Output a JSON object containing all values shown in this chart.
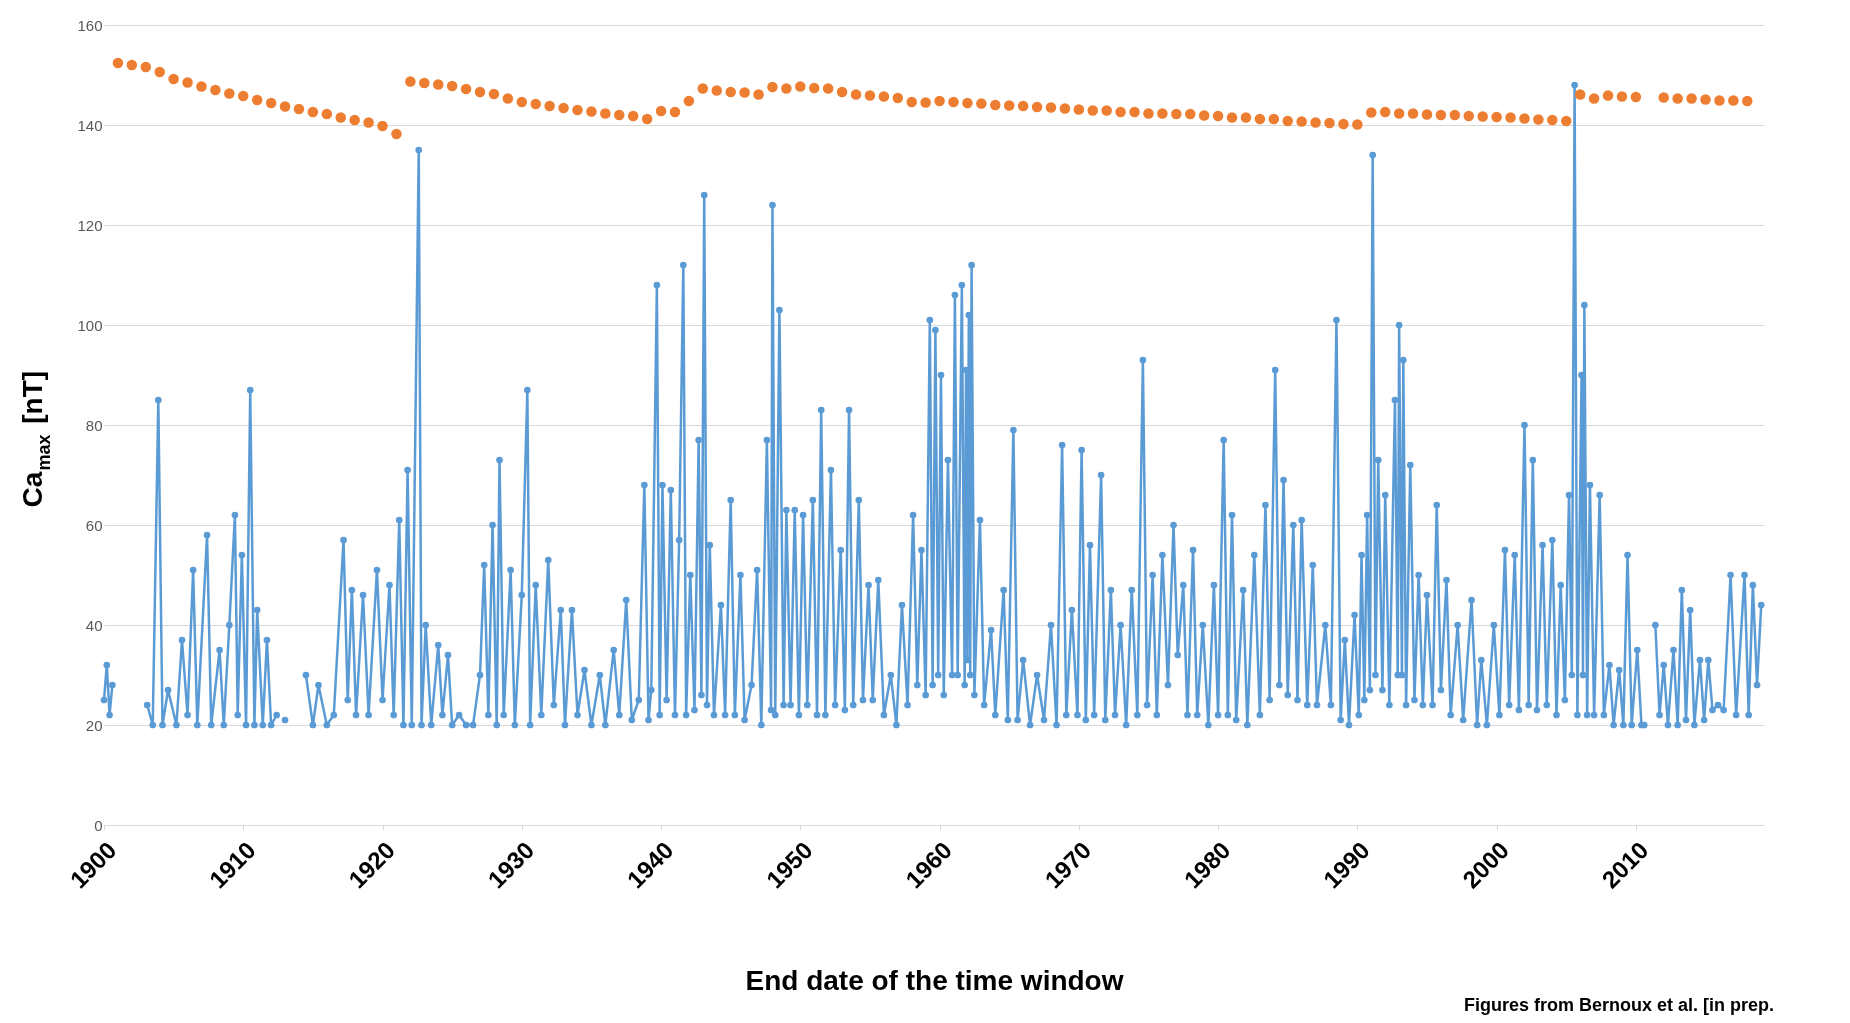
{
  "chart_data": {
    "type": "line",
    "xlabel": "End date of the time window",
    "ylabel": "Ca$_{max}$ [nT]",
    "xlim": [
      1900,
      2019.2
    ],
    "xticks": [
      1900,
      1910,
      1920,
      1930,
      1940,
      1950,
      1960,
      1970,
      1980,
      1990,
      2000,
      2010
    ],
    "ylim": [
      0,
      160
    ],
    "yticks": [
      0,
      20,
      40,
      60,
      80,
      100,
      120,
      140,
      160
    ],
    "grid": "y",
    "marker": "circle",
    "line_style": "solid",
    "annotations": [
      "Figures from Bernoux et al. [in prep."
    ],
    "series": [
      {
        "color": "#5b9bd5",
        "x": [
          1900.0,
          1900.2,
          1900.4,
          1900.6,
          1901.5,
          1903.1,
          1903.5,
          1903.9,
          1904.2,
          1904.6,
          1905.2,
          1905.6,
          1906.0,
          1906.4,
          1906.7,
          1907.4,
          1907.7,
          1908.3,
          1908.6,
          1909.0,
          1909.4,
          1909.6,
          1909.9,
          1910.2,
          1910.5,
          1910.8,
          1911.0,
          1911.4,
          1911.7,
          1912.0,
          1912.4,
          1912.8,
          1913.0,
          1913.5,
          1914.5,
          1915.0,
          1915.4,
          1916.0,
          1916.5,
          1917.2,
          1917.5,
          1917.8,
          1918.1,
          1918.6,
          1919.0,
          1919.6,
          1920.0,
          1920.5,
          1920.8,
          1921.2,
          1921.5,
          1921.8,
          1922.1,
          1922.6,
          1922.8,
          1923.1,
          1923.5,
          1924.0,
          1924.3,
          1924.7,
          1925.0,
          1925.5,
          1926.0,
          1926.5,
          1927.0,
          1927.3,
          1927.6,
          1927.9,
          1928.2,
          1928.4,
          1928.7,
          1929.2,
          1929.5,
          1930.0,
          1930.4,
          1930.6,
          1931.0,
          1931.4,
          1931.9,
          1932.3,
          1932.8,
          1933.1,
          1933.6,
          1934.0,
          1934.5,
          1935.0,
          1935.6,
          1936.0,
          1936.6,
          1937.0,
          1937.5,
          1937.9,
          1938.4,
          1938.8,
          1939.1,
          1939.3,
          1939.7,
          1939.9,
          1940.1,
          1940.4,
          1940.7,
          1941.0,
          1941.3,
          1941.6,
          1941.8,
          1942.1,
          1942.4,
          1942.7,
          1942.9,
          1943.1,
          1943.3,
          1943.5,
          1943.8,
          1944.3,
          1944.6,
          1945.0,
          1945.3,
          1945.7,
          1946.0,
          1946.5,
          1946.9,
          1947.2,
          1947.6,
          1947.9,
          1948.0,
          1948.2,
          1948.5,
          1948.8,
          1949.0,
          1949.3,
          1949.6,
          1949.9,
          1950.2,
          1950.5,
          1950.9,
          1951.2,
          1951.5,
          1951.8,
          1952.2,
          1952.5,
          1952.9,
          1953.2,
          1953.5,
          1953.8,
          1954.2,
          1954.5,
          1954.9,
          1955.2,
          1955.6,
          1956.0,
          1956.5,
          1956.9,
          1957.3,
          1957.7,
          1958.1,
          1958.4,
          1958.7,
          1959.0,
          1959.3,
          1959.5,
          1959.7,
          1959.9,
          1960.1,
          1960.3,
          1960.6,
          1960.9,
          1961.1,
          1961.3,
          1961.6,
          1961.8,
          1961.9,
          1962.0,
          1962.1,
          1962.2,
          1962.3,
          1962.5,
          1962.9,
          1963.2,
          1963.7,
          1964.0,
          1964.6,
          1964.9,
          1965.3,
          1965.6,
          1966.0,
          1966.5,
          1967.0,
          1967.5,
          1968.0,
          1968.4,
          1968.8,
          1969.1,
          1969.5,
          1969.9,
          1970.2,
          1970.5,
          1970.8,
          1971.1,
          1971.6,
          1971.9,
          1972.3,
          1972.6,
          1973.0,
          1973.4,
          1973.8,
          1974.2,
          1974.6,
          1974.9,
          1975.3,
          1975.6,
          1976.0,
          1976.4,
          1976.8,
          1977.1,
          1977.5,
          1977.8,
          1978.2,
          1978.5,
          1978.9,
          1979.3,
          1979.7,
          1980.0,
          1980.4,
          1980.7,
          1981.0,
          1981.3,
          1981.8,
          1982.1,
          1982.6,
          1983.0,
          1983.4,
          1983.7,
          1984.1,
          1984.4,
          1984.7,
          1985.0,
          1985.4,
          1985.7,
          1986.0,
          1986.4,
          1986.8,
          1987.1,
          1987.7,
          1988.1,
          1988.5,
          1988.8,
          1989.1,
          1989.4,
          1989.8,
          1990.1,
          1990.3,
          1990.5,
          1990.7,
          1990.9,
          1991.1,
          1991.3,
          1991.5,
          1991.8,
          1992.0,
          1992.3,
          1992.7,
          1992.9,
          1993.0,
          1993.2,
          1993.3,
          1993.5,
          1993.8,
          1994.1,
          1994.4,
          1994.7,
          1995.0,
          1995.4,
          1995.7,
          1996.0,
          1996.4,
          1996.7,
          1997.2,
          1997.6,
          1998.2,
          1998.6,
          1998.9,
          1999.3,
          1999.8,
          2000.2,
          2000.6,
          2000.9,
          2001.3,
          2001.6,
          2002.0,
          2002.3,
          2002.6,
          2002.9,
          2003.3,
          2003.6,
          2004.0,
          2004.3,
          2004.6,
          2004.9,
          2005.2,
          2005.4,
          2005.6,
          2005.8,
          2006.1,
          2006.2,
          2006.3,
          2006.5,
          2006.7,
          2007.0,
          2007.4,
          2007.7,
          2008.1,
          2008.4,
          2008.8,
          2009.1,
          2009.4,
          2009.7,
          2010.1,
          2010.4,
          2010.6,
          2011.0,
          2011.4,
          2011.7,
          2012.0,
          2012.3,
          2012.7,
          2013.0,
          2013.3,
          2013.6,
          2013.9,
          2014.2,
          2014.6,
          2014.9,
          2015.2,
          2015.5,
          2015.9,
          2016.3,
          2016.8,
          2017.2,
          2017.8,
          2018.1,
          2018.4,
          2018.7,
          2019.0
        ],
        "values": [
          25,
          32,
          22,
          28,
          null,
          24,
          20,
          85,
          20,
          27,
          20,
          37,
          22,
          51,
          20,
          58,
          20,
          35,
          20,
          40,
          62,
          22,
          54,
          20,
          87,
          20,
          43,
          20,
          37,
          20,
          22,
          null,
          21,
          null,
          30,
          20,
          28,
          20,
          22,
          57,
          25,
          47,
          22,
          46,
          22,
          51,
          25,
          48,
          22,
          61,
          20,
          71,
          20,
          135,
          20,
          40,
          20,
          36,
          22,
          34,
          20,
          22,
          20,
          20,
          30,
          52,
          22,
          60,
          20,
          73,
          22,
          51,
          20,
          46,
          87,
          20,
          48,
          22,
          53,
          24,
          43,
          20,
          43,
          22,
          31,
          20,
          30,
          20,
          35,
          22,
          45,
          21,
          25,
          68,
          21,
          27,
          108,
          22,
          68,
          25,
          67,
          22,
          57,
          112,
          22,
          50,
          23,
          77,
          26,
          126,
          24,
          56,
          22,
          44,
          22,
          65,
          22,
          50,
          21,
          28,
          51,
          20,
          77,
          23,
          124,
          22,
          103,
          24,
          63,
          24,
          63,
          22,
          62,
          24,
          65,
          22,
          83,
          22,
          71,
          24,
          55,
          23,
          83,
          24,
          65,
          25,
          48,
          25,
          49,
          22,
          30,
          20,
          44,
          24,
          62,
          28,
          55,
          26,
          101,
          28,
          99,
          30,
          90,
          26,
          73,
          30,
          106,
          30,
          108,
          28,
          91,
          33,
          102,
          30,
          112,
          26,
          61,
          24,
          39,
          22,
          47,
          21,
          79,
          21,
          33,
          20,
          30,
          21,
          40,
          20,
          76,
          22,
          43,
          22,
          75,
          21,
          56,
          22,
          70,
          21,
          47,
          22,
          40,
          20,
          47,
          22,
          93,
          24,
          50,
          22,
          54,
          28,
          60,
          34,
          48,
          22,
          55,
          22,
          40,
          20,
          48,
          22,
          77,
          22,
          62,
          21,
          47,
          20,
          54,
          22,
          64,
          25,
          91,
          28,
          69,
          26,
          60,
          25,
          61,
          24,
          52,
          24,
          40,
          24,
          101,
          21,
          37,
          20,
          42,
          22,
          54,
          25,
          62,
          27,
          134,
          30,
          73,
          27,
          66,
          24,
          85,
          30,
          100,
          30,
          93,
          24,
          72,
          25,
          50,
          24,
          46,
          24,
          64,
          27,
          49,
          22,
          40,
          21,
          45,
          20,
          33,
          20,
          40,
          22,
          55,
          24,
          54,
          23,
          80,
          24,
          73,
          23,
          56,
          24,
          57,
          22,
          48,
          25,
          66,
          30,
          148,
          22,
          90,
          30,
          104,
          22,
          68,
          22,
          66,
          22,
          32,
          20,
          31,
          20,
          54,
          20,
          35,
          20,
          20,
          null,
          40,
          22,
          32,
          20,
          35,
          20,
          47,
          21,
          43,
          20,
          33,
          21,
          33,
          23,
          24,
          23,
          50,
          22,
          50,
          22,
          48,
          28,
          44
        ]
      },
      {
        "type": "scatter",
        "color": "#ed7d31",
        "x": [
          1901,
          1902,
          1903,
          1904,
          1905,
          1906,
          1907,
          1908,
          1909,
          1910,
          1911,
          1912,
          1913,
          1914,
          1915,
          1916,
          1917,
          1918,
          1919,
          1920,
          1921,
          1922,
          1923,
          1924,
          1925,
          1926,
          1927,
          1928,
          1929,
          1930,
          1931,
          1932,
          1933,
          1934,
          1935,
          1936,
          1937,
          1938,
          1939,
          1940,
          1941,
          1942,
          1943,
          1944,
          1945,
          1946,
          1947,
          1948,
          1949,
          1950,
          1951,
          1952,
          1953,
          1954,
          1955,
          1956,
          1957,
          1958,
          1959,
          1960,
          1961,
          1962,
          1963,
          1964,
          1965,
          1966,
          1967,
          1968,
          1969,
          1970,
          1971,
          1972,
          1973,
          1974,
          1975,
          1976,
          1977,
          1978,
          1979,
          1980,
          1981,
          1982,
          1983,
          1984,
          1985,
          1986,
          1987,
          1988,
          1989,
          1990,
          1991,
          1992,
          1993,
          1994,
          1995,
          1996,
          1997,
          1998,
          1999,
          2000,
          2001,
          2002,
          2003,
          2004,
          2005,
          2006,
          2007,
          2008,
          2009,
          2010,
          2011,
          2012,
          2013,
          2014,
          2015,
          2016,
          2017,
          2018
        ],
        "values": [
          152.4,
          152.0,
          151.6,
          150.6,
          149.2,
          148.5,
          147.7,
          147.0,
          146.3,
          145.8,
          145.0,
          144.4,
          143.7,
          143.2,
          142.6,
          142.2,
          141.5,
          141.0,
          140.5,
          139.8,
          138.2,
          148.7,
          148.4,
          148.1,
          147.8,
          147.2,
          146.6,
          146.2,
          145.3,
          144.6,
          144.2,
          143.8,
          143.4,
          143.0,
          142.7,
          142.3,
          142.0,
          141.8,
          141.2,
          142.8,
          142.6,
          144.8,
          147.3,
          146.9,
          146.6,
          146.5,
          146.1,
          147.6,
          147.3,
          147.7,
          147.4,
          147.3,
          146.6,
          146.1,
          145.9,
          145.7,
          145.4,
          144.6,
          144.5,
          144.8,
          144.6,
          144.4,
          144.3,
          144.0,
          143.9,
          143.8,
          143.6,
          143.5,
          143.3,
          143.1,
          142.9,
          142.9,
          142.6,
          142.6,
          142.3,
          142.3,
          142.2,
          142.2,
          141.9,
          141.8,
          141.5,
          141.5,
          141.2,
          141.2,
          140.8,
          140.7,
          140.5,
          140.4,
          140.2,
          140.1,
          142.5,
          142.6,
          142.3,
          142.3,
          142.1,
          142.0,
          142.0,
          141.8,
          141.7,
          141.6,
          141.5,
          141.3,
          141.1,
          141.0,
          140.8,
          146.1,
          145.3,
          145.9,
          145.7,
          145.6,
          null,
          145.5,
          145.3,
          145.3,
          145.1,
          144.9,
          144.9,
          144.8
        ]
      }
    ]
  }
}
